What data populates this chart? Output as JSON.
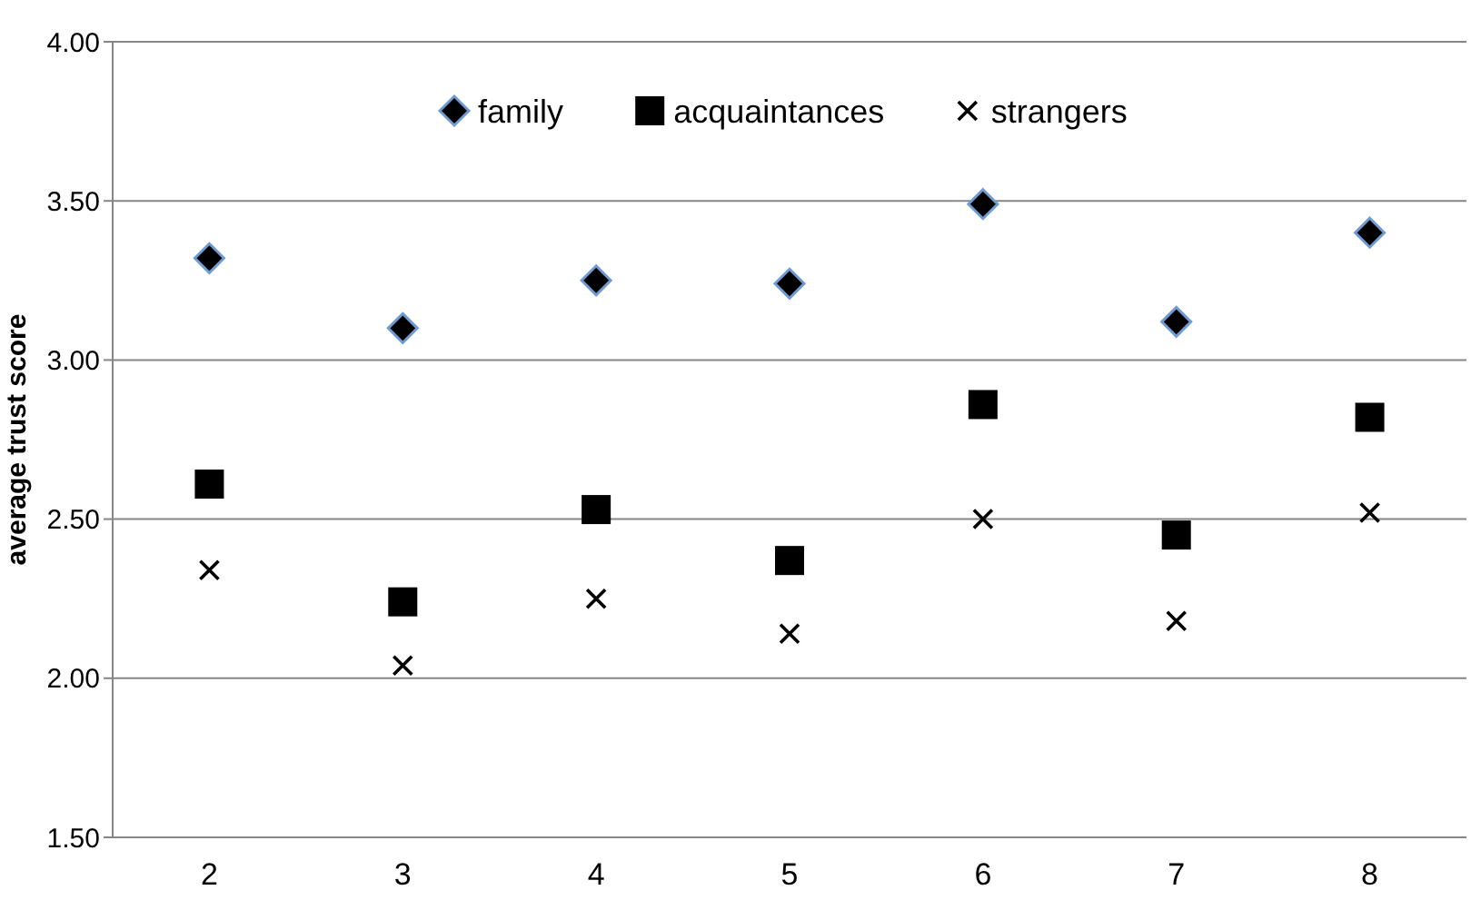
{
  "chart_data": {
    "type": "scatter",
    "ylabel": "average trust score",
    "categories": [
      "2",
      "3",
      "4",
      "5",
      "6",
      "7",
      "8"
    ],
    "ylim": [
      1.5,
      4
    ],
    "yticks": [
      {
        "value": 1.5,
        "label": "1.50"
      },
      {
        "value": 2,
        "label": "2.00"
      },
      {
        "value": 2.5,
        "label": "2.50"
      },
      {
        "value": 3,
        "label": "3.00"
      },
      {
        "value": 3.5,
        "label": "3.50"
      },
      {
        "value": 4,
        "label": "4.00"
      }
    ],
    "grid": "y",
    "legend": "top",
    "series": [
      {
        "name": "family",
        "color": "#000000",
        "marker": "diamond",
        "values": [
          3.32,
          3.1,
          3.25,
          3.24,
          3.49,
          3.12,
          3.4
        ]
      },
      {
        "name": "acquaintances",
        "color": "#000000",
        "marker": "square",
        "values": [
          2.61,
          2.24,
          2.53,
          2.37,
          2.86,
          2.45,
          2.82
        ]
      },
      {
        "name": "strangers",
        "color": "#000000",
        "marker": "cross",
        "values": [
          2.34,
          2.04,
          2.25,
          2.14,
          2.5,
          2.18,
          2.52
        ]
      }
    ]
  }
}
